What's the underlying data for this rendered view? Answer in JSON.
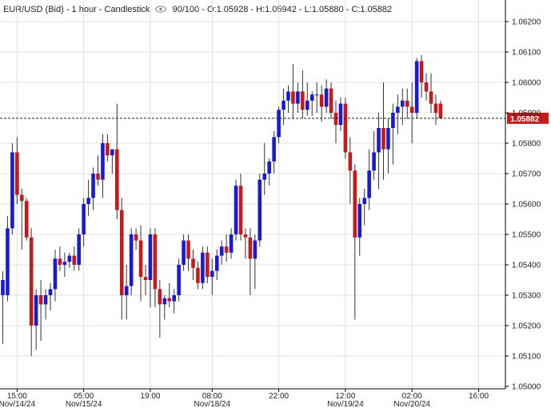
{
  "header": {
    "symbol_text": "EUR/USD (Bid) - 1 hour - Candlestick",
    "quality_text": "90/100",
    "ohlc_text": "- O:1.05928 - H:1.05942 - L:1.05880 - C:1.05882",
    "eye_icon": "eye-icon"
  },
  "colors": {
    "up": "#1a1ad1",
    "down": "#c41a1a",
    "wick": "#333333",
    "grid": "#e0e0e0",
    "price_tag": "#c41a1a",
    "axis": "#000000"
  },
  "chart_data": {
    "type": "candlestick",
    "title": "EUR/USD (Bid) - 1 hour - Candlestick",
    "ylim": [
      1.05,
      1.0625
    ],
    "yticks": [
      "1.06200",
      "1.06100",
      "1.06000",
      "1.05900",
      "1.05800",
      "1.05700",
      "1.05600",
      "1.05500",
      "1.05400",
      "1.05300",
      "1.05200",
      "1.05100",
      "1.05000"
    ],
    "xticks": [
      {
        "time": "15:00",
        "date": "Nov/14/24",
        "index": 3
      },
      {
        "time": "05:00",
        "date": "Nov/15/24",
        "index": 17
      },
      {
        "time": "19:00",
        "date": "",
        "index": 31
      },
      {
        "time": "08:00",
        "date": "Nov/18/24",
        "index": 44
      },
      {
        "time": "22:00",
        "date": "",
        "index": 58
      },
      {
        "time": "12:00",
        "date": "Nov/19/24",
        "index": 72
      },
      {
        "time": "02:00",
        "date": "Nov/20/24",
        "index": 86
      },
      {
        "time": "16:00",
        "date": "",
        "index": 100
      }
    ],
    "current_price": "1.05882",
    "current_value": 1.05882,
    "candles": [
      {
        "o": 1.053,
        "h": 1.0538,
        "l": 1.0514,
        "c": 1.0535
      },
      {
        "o": 1.053,
        "h": 1.0556,
        "l": 1.0528,
        "c": 1.0552
      },
      {
        "o": 1.0552,
        "h": 1.058,
        "l": 1.055,
        "c": 1.0577
      },
      {
        "o": 1.0577,
        "h": 1.0582,
        "l": 1.056,
        "c": 1.0563
      },
      {
        "o": 1.0563,
        "h": 1.0565,
        "l": 1.0545,
        "c": 1.0561
      },
      {
        "o": 1.0561,
        "h": 1.0562,
        "l": 1.0548,
        "c": 1.0549
      },
      {
        "o": 1.0549,
        "h": 1.0552,
        "l": 1.051,
        "c": 1.052
      },
      {
        "o": 1.052,
        "h": 1.0532,
        "l": 1.0512,
        "c": 1.053
      },
      {
        "o": 1.053,
        "h": 1.0535,
        "l": 1.0515,
        "c": 1.0527
      },
      {
        "o": 1.0527,
        "h": 1.0532,
        "l": 1.0522,
        "c": 1.053
      },
      {
        "o": 1.053,
        "h": 1.0534,
        "l": 1.0525,
        "c": 1.0532
      },
      {
        "o": 1.0532,
        "h": 1.0545,
        "l": 1.0528,
        "c": 1.0542
      },
      {
        "o": 1.0542,
        "h": 1.0546,
        "l": 1.0538,
        "c": 1.054
      },
      {
        "o": 1.054,
        "h": 1.0544,
        "l": 1.0536,
        "c": 1.0541
      },
      {
        "o": 1.0541,
        "h": 1.0544,
        "l": 1.0539,
        "c": 1.0543
      },
      {
        "o": 1.0543,
        "h": 1.0546,
        "l": 1.0538,
        "c": 1.054
      },
      {
        "o": 1.054,
        "h": 1.0552,
        "l": 1.0538,
        "c": 1.055
      },
      {
        "o": 1.055,
        "h": 1.0562,
        "l": 1.0546,
        "c": 1.056
      },
      {
        "o": 1.056,
        "h": 1.0568,
        "l": 1.0556,
        "c": 1.0562
      },
      {
        "o": 1.0562,
        "h": 1.0572,
        "l": 1.0558,
        "c": 1.057
      },
      {
        "o": 1.057,
        "h": 1.0576,
        "l": 1.0566,
        "c": 1.0568
      },
      {
        "o": 1.0568,
        "h": 1.0583,
        "l": 1.0562,
        "c": 1.058
      },
      {
        "o": 1.058,
        "h": 1.0583,
        "l": 1.0574,
        "c": 1.0576
      },
      {
        "o": 1.0576,
        "h": 1.0578,
        "l": 1.057,
        "c": 1.0578
      },
      {
        "o": 1.0578,
        "h": 1.0593,
        "l": 1.0555,
        "c": 1.0558
      },
      {
        "o": 1.0558,
        "h": 1.0562,
        "l": 1.0522,
        "c": 1.053
      },
      {
        "o": 1.053,
        "h": 1.054,
        "l": 1.0522,
        "c": 1.0533
      },
      {
        "o": 1.0533,
        "h": 1.0552,
        "l": 1.053,
        "c": 1.055
      },
      {
        "o": 1.055,
        "h": 1.0552,
        "l": 1.0545,
        "c": 1.0548
      },
      {
        "o": 1.0548,
        "h": 1.0553,
        "l": 1.0528,
        "c": 1.0536
      },
      {
        "o": 1.0536,
        "h": 1.054,
        "l": 1.053,
        "c": 1.0535
      },
      {
        "o": 1.0535,
        "h": 1.0552,
        "l": 1.0526,
        "c": 1.055
      },
      {
        "o": 1.055,
        "h": 1.0552,
        "l": 1.0526,
        "c": 1.0532
      },
      {
        "o": 1.0532,
        "h": 1.0535,
        "l": 1.0516,
        "c": 1.0527
      },
      {
        "o": 1.0527,
        "h": 1.053,
        "l": 1.0522,
        "c": 1.0529
      },
      {
        "o": 1.0529,
        "h": 1.0534,
        "l": 1.0526,
        "c": 1.0528
      },
      {
        "o": 1.0528,
        "h": 1.0532,
        "l": 1.0524,
        "c": 1.053
      },
      {
        "o": 1.053,
        "h": 1.0542,
        "l": 1.0528,
        "c": 1.054
      },
      {
        "o": 1.054,
        "h": 1.055,
        "l": 1.0538,
        "c": 1.0548
      },
      {
        "o": 1.0548,
        "h": 1.055,
        "l": 1.0538,
        "c": 1.0542
      },
      {
        "o": 1.0542,
        "h": 1.0545,
        "l": 1.0535,
        "c": 1.0539
      },
      {
        "o": 1.0539,
        "h": 1.0541,
        "l": 1.0532,
        "c": 1.0534
      },
      {
        "o": 1.0534,
        "h": 1.0546,
        "l": 1.0532,
        "c": 1.0544
      },
      {
        "o": 1.0544,
        "h": 1.0546,
        "l": 1.0534,
        "c": 1.0536
      },
      {
        "o": 1.0536,
        "h": 1.0542,
        "l": 1.053,
        "c": 1.0538
      },
      {
        "o": 1.0538,
        "h": 1.0545,
        "l": 1.0535,
        "c": 1.0543
      },
      {
        "o": 1.0543,
        "h": 1.0548,
        "l": 1.054,
        "c": 1.0546
      },
      {
        "o": 1.0546,
        "h": 1.055,
        "l": 1.0541,
        "c": 1.0544
      },
      {
        "o": 1.0544,
        "h": 1.0552,
        "l": 1.0542,
        "c": 1.055
      },
      {
        "o": 1.055,
        "h": 1.0568,
        "l": 1.0548,
        "c": 1.0566
      },
      {
        "o": 1.0566,
        "h": 1.057,
        "l": 1.0548,
        "c": 1.055
      },
      {
        "o": 1.055,
        "h": 1.0552,
        "l": 1.0542,
        "c": 1.0549
      },
      {
        "o": 1.0549,
        "h": 1.0552,
        "l": 1.053,
        "c": 1.0542
      },
      {
        "o": 1.0542,
        "h": 1.055,
        "l": 1.0532,
        "c": 1.0548
      },
      {
        "o": 1.0548,
        "h": 1.057,
        "l": 1.0546,
        "c": 1.0568
      },
      {
        "o": 1.0568,
        "h": 1.058,
        "l": 1.0563,
        "c": 1.057
      },
      {
        "o": 1.057,
        "h": 1.0575,
        "l": 1.0566,
        "c": 1.0574
      },
      {
        "o": 1.0574,
        "h": 1.0584,
        "l": 1.057,
        "c": 1.0582
      },
      {
        "o": 1.0582,
        "h": 1.0592,
        "l": 1.058,
        "c": 1.0591
      },
      {
        "o": 1.0591,
        "h": 1.0598,
        "l": 1.0586,
        "c": 1.0594
      },
      {
        "o": 1.0594,
        "h": 1.0599,
        "l": 1.059,
        "c": 1.0597
      },
      {
        "o": 1.0597,
        "h": 1.0606,
        "l": 1.0588,
        "c": 1.0593
      },
      {
        "o": 1.0593,
        "h": 1.06,
        "l": 1.059,
        "c": 1.0597
      },
      {
        "o": 1.0597,
        "h": 1.0604,
        "l": 1.0588,
        "c": 1.0591
      },
      {
        "o": 1.0591,
        "h": 1.06,
        "l": 1.0589,
        "c": 1.0594
      },
      {
        "o": 1.0594,
        "h": 1.0597,
        "l": 1.0589,
        "c": 1.0596
      },
      {
        "o": 1.0596,
        "h": 1.06,
        "l": 1.059,
        "c": 1.0596
      },
      {
        "o": 1.0596,
        "h": 1.0599,
        "l": 1.0587,
        "c": 1.0592
      },
      {
        "o": 1.0592,
        "h": 1.0601,
        "l": 1.059,
        "c": 1.0598
      },
      {
        "o": 1.0598,
        "h": 1.06,
        "l": 1.0588,
        "c": 1.059
      },
      {
        "o": 1.059,
        "h": 1.0594,
        "l": 1.058,
        "c": 1.0586
      },
      {
        "o": 1.0586,
        "h": 1.0595,
        "l": 1.0584,
        "c": 1.0593
      },
      {
        "o": 1.0593,
        "h": 1.0595,
        "l": 1.0575,
        "c": 1.0577
      },
      {
        "o": 1.0577,
        "h": 1.0582,
        "l": 1.056,
        "c": 1.0571
      },
      {
        "o": 1.0571,
        "h": 1.0573,
        "l": 1.0522,
        "c": 1.0549
      },
      {
        "o": 1.0549,
        "h": 1.0562,
        "l": 1.0543,
        "c": 1.056
      },
      {
        "o": 1.056,
        "h": 1.0565,
        "l": 1.0553,
        "c": 1.0562
      },
      {
        "o": 1.0562,
        "h": 1.0578,
        "l": 1.0558,
        "c": 1.0571
      },
      {
        "o": 1.0571,
        "h": 1.0584,
        "l": 1.0568,
        "c": 1.0577
      },
      {
        "o": 1.0577,
        "h": 1.059,
        "l": 1.0565,
        "c": 1.0585
      },
      {
        "o": 1.0585,
        "h": 1.06,
        "l": 1.0568,
        "c": 1.0578
      },
      {
        "o": 1.0578,
        "h": 1.0588,
        "l": 1.057,
        "c": 1.0585
      },
      {
        "o": 1.0585,
        "h": 1.0593,
        "l": 1.0573,
        "c": 1.059
      },
      {
        "o": 1.059,
        "h": 1.0596,
        "l": 1.0583,
        "c": 1.0592
      },
      {
        "o": 1.0592,
        "h": 1.0598,
        "l": 1.0586,
        "c": 1.0594
      },
      {
        "o": 1.0594,
        "h": 1.0598,
        "l": 1.0588,
        "c": 1.0592
      },
      {
        "o": 1.0592,
        "h": 1.06,
        "l": 1.058,
        "c": 1.059
      },
      {
        "o": 1.059,
        "h": 1.0608,
        "l": 1.0588,
        "c": 1.0607
      },
      {
        "o": 1.0607,
        "h": 1.0609,
        "l": 1.0595,
        "c": 1.06
      },
      {
        "o": 1.06,
        "h": 1.0603,
        "l": 1.0594,
        "c": 1.0597
      },
      {
        "o": 1.0597,
        "h": 1.0603,
        "l": 1.059,
        "c": 1.0593
      },
      {
        "o": 1.0593,
        "h": 1.0596,
        "l": 1.0586,
        "c": 1.059
      },
      {
        "o": 1.0593,
        "h": 1.0594,
        "l": 1.0588,
        "c": 1.05882
      }
    ]
  }
}
